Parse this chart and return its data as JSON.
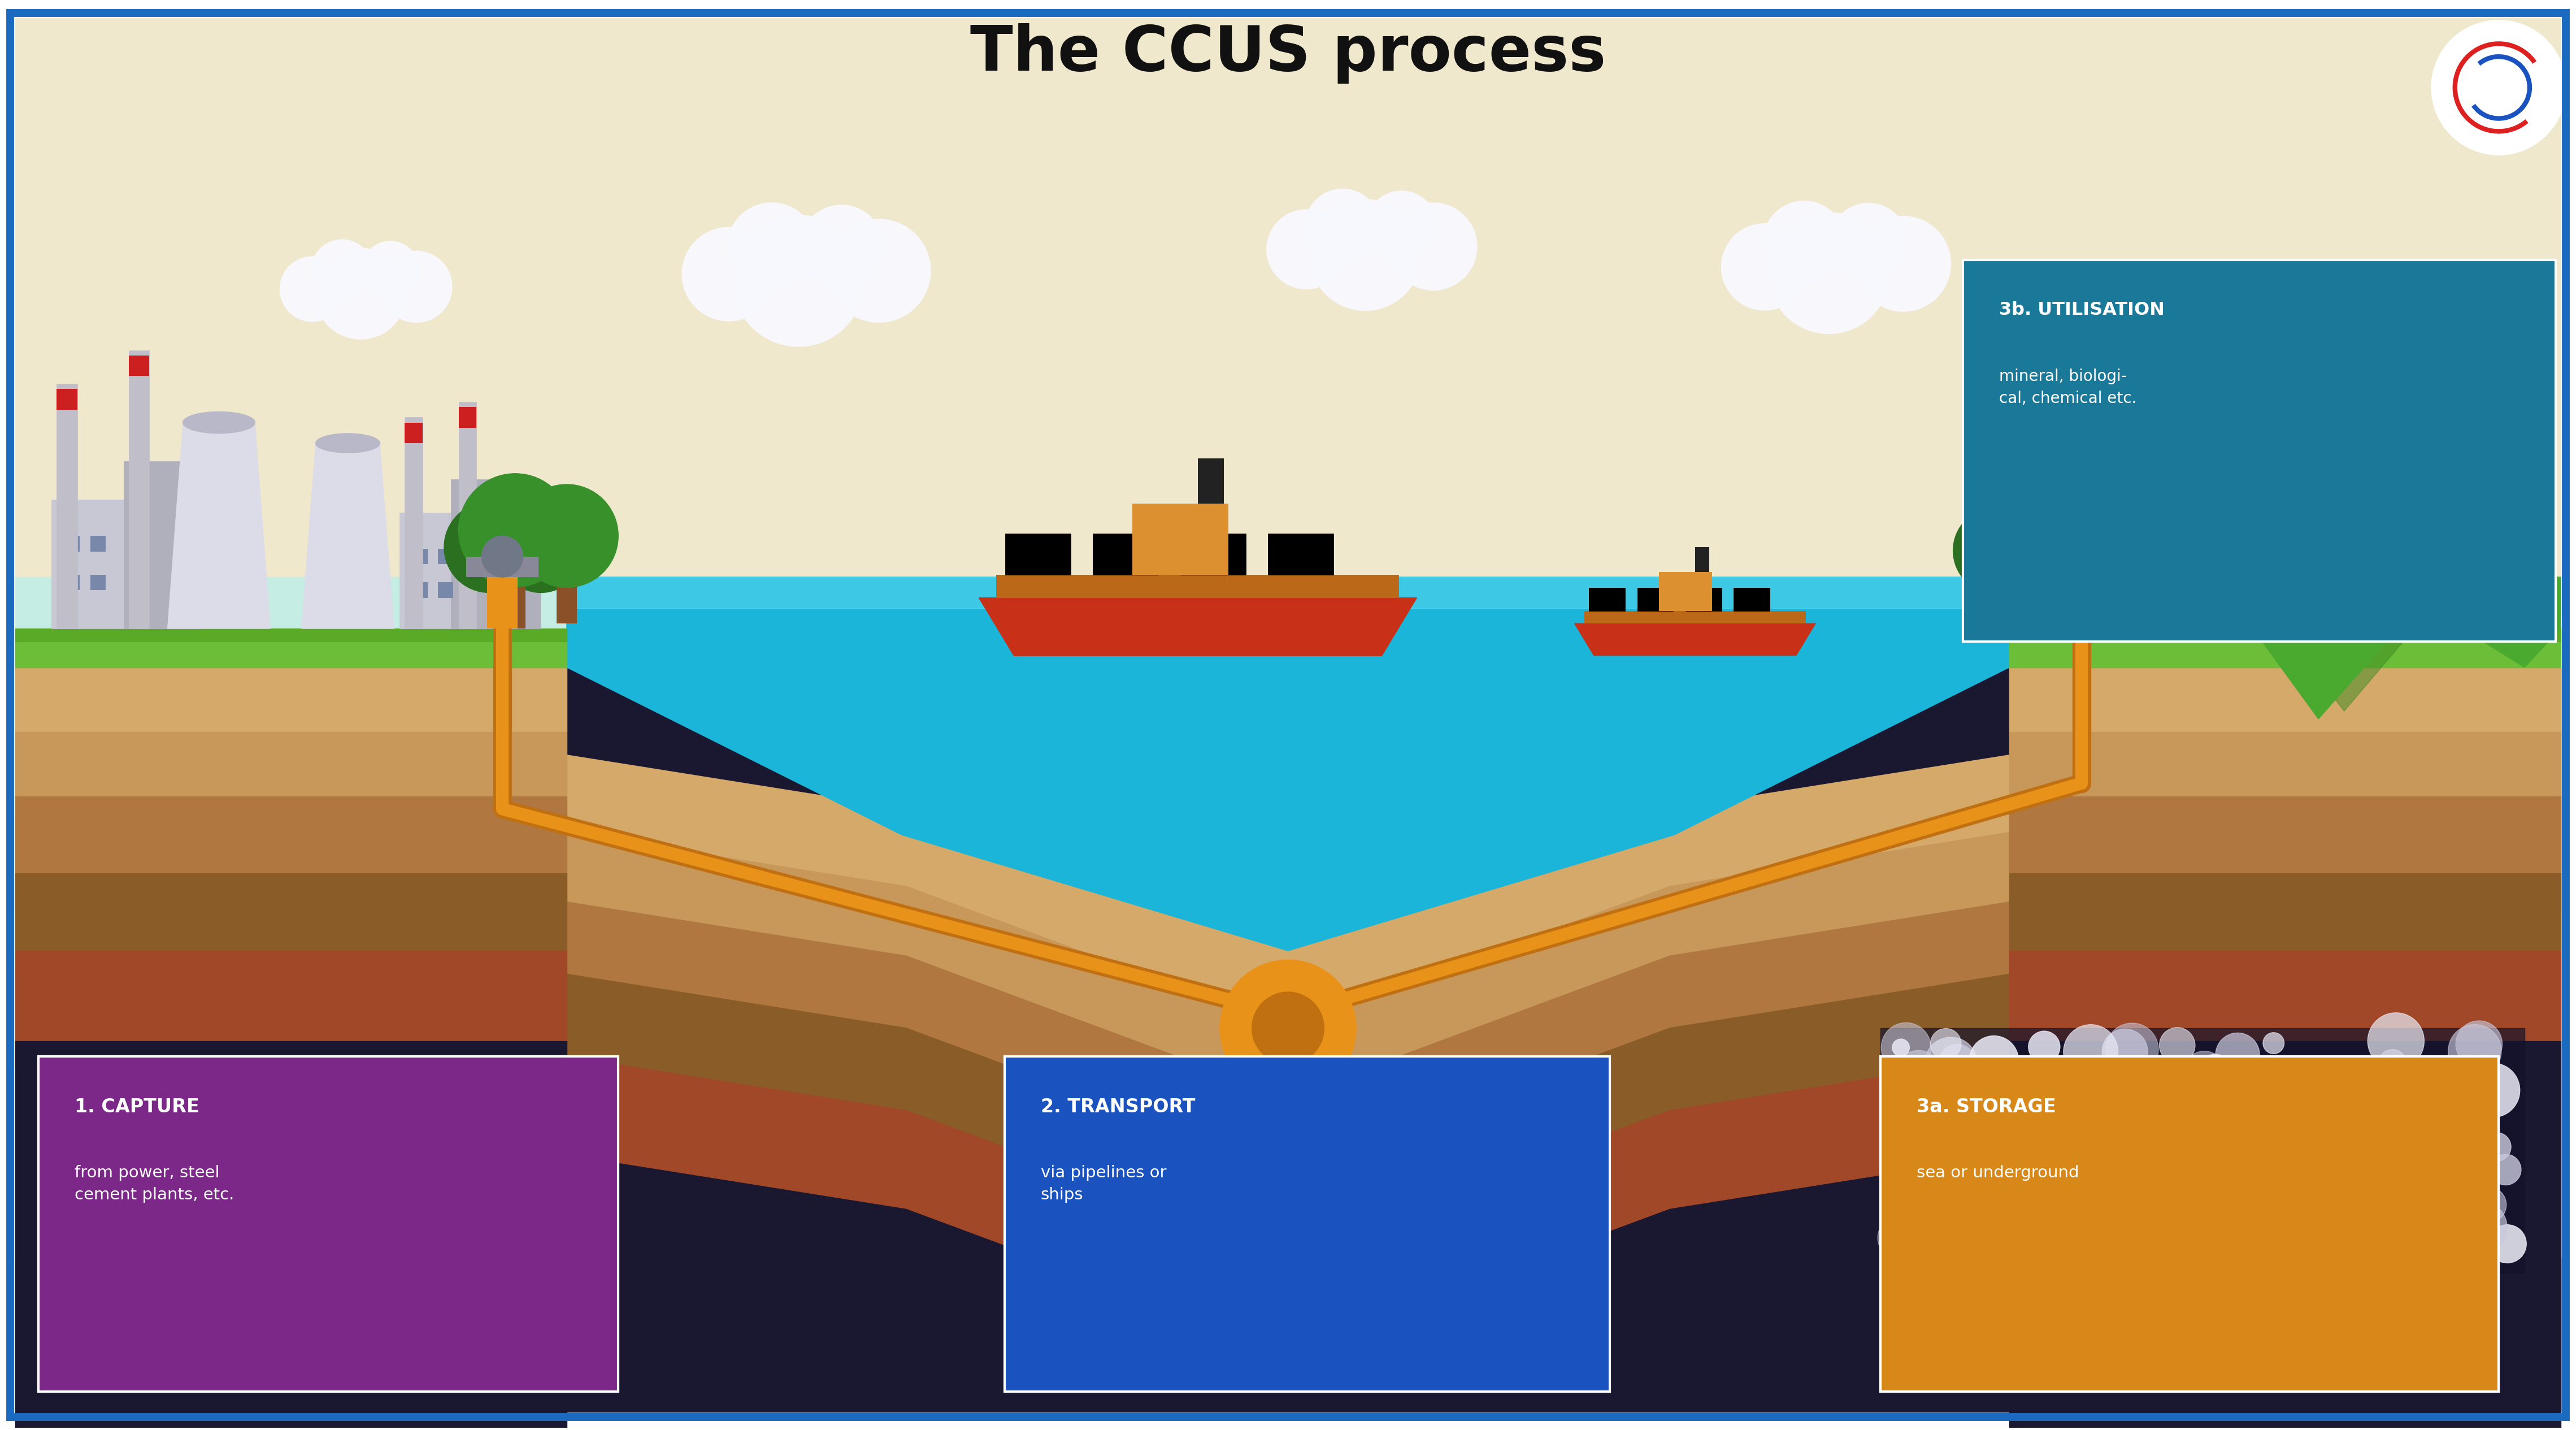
{
  "title": "The CCUS process",
  "title_fontsize": 80,
  "bg_white": "#ffffff",
  "border_color": "#1a6abf",
  "cream_top": "#f0e8cc",
  "sky_mint": "#c5ede3",
  "water_deep": "#1ab5d8",
  "water_mid": "#2cc8e8",
  "water_light": "#55d8f0",
  "grass_top": "#6cbd38",
  "grass_mid": "#5aaa28",
  "soil_sandy": "#d4a96a",
  "soil_light": "#c8985a",
  "soil_med": "#b07840",
  "soil_dark": "#8a5c28",
  "soil_reddish": "#a04828",
  "deep_dark": "#1a1830",
  "building_grey": "#c8c8d4",
  "building_dark": "#b0b0bc",
  "chimney_grey": "#c0bec8",
  "chimney_red": "#cc2020",
  "tower_light": "#dcdce8",
  "window_blue": "#7888aa",
  "tree_trunk": "#8a5028",
  "tree_green": "#38902a",
  "tree_dark": "#2a7020",
  "hill_green": "#4aaa30",
  "hill_dark": "#3a8a20",
  "pipe_orange": "#e8921a",
  "pipe_dark": "#c07010",
  "pipe_yellow": "#e0b820",
  "valve_color": "#d4a020",
  "ship_hull": "#c83018",
  "ship_deck": "#cc7020",
  "ship_super": "#dd9030",
  "ship_dark": "#aa2010",
  "cloud_white": "#f8f8ff",
  "bubble_white": "#e8e8f4",
  "bubble_grey": "#c8c8dc",
  "box1_bg": "#7b2888",
  "box2_bg": "#1a52c0",
  "box3a_bg": "#d88818",
  "box3b_bg": "#1a7898",
  "box1_title": "1. CAPTURE",
  "box1_body": "from power, steel\ncement plants, etc.",
  "box2_title": "2. TRANSPORT",
  "box2_body": "via pipelines or\nships",
  "box3a_title": "3a. STORAGE",
  "box3a_body": "sea or underground",
  "box3b_title": "3b. UTILISATION",
  "box3b_body": "mineral, biologi-\ncal, chemical etc.",
  "text_white": "#ffffff",
  "text_dark": "#111111"
}
